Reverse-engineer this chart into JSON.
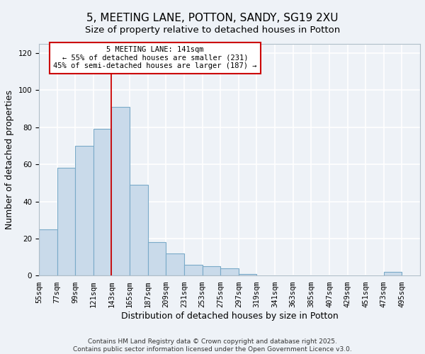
{
  "title": "5, MEETING LANE, POTTON, SANDY, SG19 2XU",
  "subtitle": "Size of property relative to detached houses in Potton",
  "xlabel": "Distribution of detached houses by size in Potton",
  "ylabel": "Number of detached properties",
  "bar_color": "#c9daea",
  "bar_edge_color": "#7aaac8",
  "bin_labels": [
    "55sqm",
    "77sqm",
    "99sqm",
    "121sqm",
    "143sqm",
    "165sqm",
    "187sqm",
    "209sqm",
    "231sqm",
    "253sqm",
    "275sqm",
    "297sqm",
    "319sqm",
    "341sqm",
    "363sqm",
    "385sqm",
    "407sqm",
    "429sqm",
    "451sqm",
    "473sqm",
    "495sqm"
  ],
  "bar_values": [
    25,
    58,
    70,
    79,
    91,
    49,
    18,
    12,
    6,
    5,
    4,
    1,
    0,
    0,
    0,
    0,
    0,
    0,
    0,
    2,
    0
  ],
  "bin_edges": [
    55,
    77,
    99,
    121,
    143,
    165,
    187,
    209,
    231,
    253,
    275,
    297,
    319,
    341,
    363,
    385,
    407,
    429,
    451,
    473,
    495,
    517
  ],
  "ylim": [
    0,
    125
  ],
  "yticks": [
    0,
    20,
    40,
    60,
    80,
    100,
    120
  ],
  "vline_x": 143,
  "vline_color": "#cc0000",
  "annotation_title": "5 MEETING LANE: 141sqm",
  "annotation_line1": "← 55% of detached houses are smaller (231)",
  "annotation_line2": "45% of semi-detached houses are larger (187) →",
  "annotation_box_color": "#ffffff",
  "annotation_box_edge": "#cc0000",
  "footer1": "Contains HM Land Registry data © Crown copyright and database right 2025.",
  "footer2": "Contains public sector information licensed under the Open Government Licence v3.0.",
  "background_color": "#eef2f7",
  "grid_color": "#ffffff",
  "title_fontsize": 11,
  "subtitle_fontsize": 9.5,
  "axis_label_fontsize": 9,
  "tick_fontsize": 7.5,
  "annotation_fontsize": 7.5,
  "footer_fontsize": 6.5
}
